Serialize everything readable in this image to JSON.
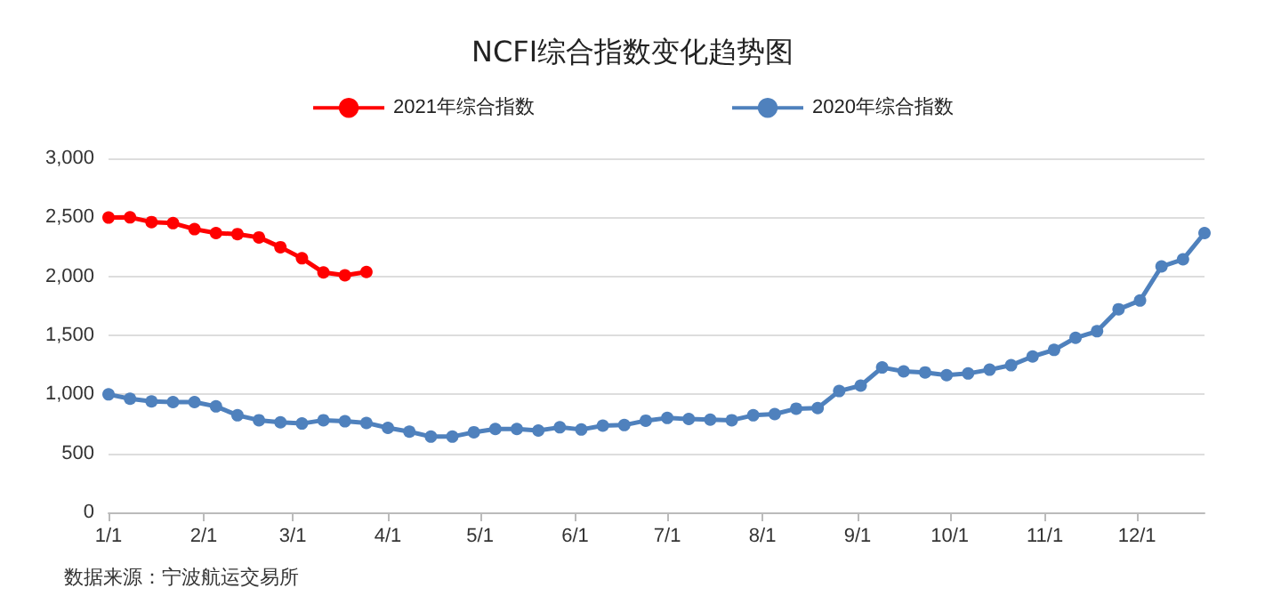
{
  "chart_data": {
    "type": "line",
    "title": "NCFI综合指数变化趋势图",
    "annotations": [
      "数据来源：宁波航运交易所"
    ],
    "series": [
      {
        "name": "2021年综合指数",
        "color": "#ff0000",
        "x": [
          "--01-01",
          "--01-08",
          "--01-15",
          "--01-22",
          "--01-29",
          "--02-05",
          "--02-12",
          "--02-19",
          "--02-26",
          "--03-04",
          "--03-11",
          "--03-18",
          "--03-25"
        ],
        "values": [
          2498,
          2500,
          2460,
          2451,
          2400,
          2367,
          2358,
          2330,
          2247,
          2153,
          2033,
          2009,
          2037
        ]
      },
      {
        "name": "2020年综合指数",
        "color": "#4f81bd",
        "x": [
          "--01-01",
          "--01-08",
          "--01-15",
          "--01-22",
          "--01-29",
          "--02-05",
          "--02-12",
          "--02-19",
          "--02-26",
          "--03-04",
          "--03-11",
          "--03-18",
          "--03-25",
          "--04-01",
          "--04-08",
          "--04-15",
          "--04-22",
          "--04-29",
          "--05-06",
          "--05-13",
          "--05-20",
          "--05-27",
          "--06-03",
          "--06-10",
          "--06-17",
          "--06-24",
          "--07-01",
          "--07-08",
          "--07-15",
          "--07-22",
          "--07-29",
          "--08-05",
          "--08-12",
          "--08-19",
          "--08-26",
          "--09-02",
          "--09-09",
          "--09-16",
          "--09-23",
          "--09-30",
          "--10-07",
          "--10-14",
          "--10-21",
          "--10-28",
          "--11-04",
          "--11-11",
          "--11-18",
          "--11-25",
          "--12-02",
          "--12-09",
          "--12-16",
          "--12-23"
        ],
        "values": [
          1000,
          963,
          940,
          935,
          935,
          898,
          823,
          781,
          763,
          753,
          781,
          772,
          758,
          716,
          684,
          642,
          642,
          679,
          707,
          707,
          693,
          721,
          702,
          735,
          740,
          777,
          800,
          791,
          786,
          781,
          823,
          833,
          879,
          884,
          1028,
          1074,
          1228,
          1195,
          1186,
          1163,
          1177,
          1209,
          1247,
          1321,
          1377,
          1479,
          1535,
          1721,
          1795,
          2084,
          2144,
          2367
        ]
      }
    ],
    "xlim": [
      "--01-01",
      "--12-23"
    ],
    "xticks": [
      {
        "value": "--01-01",
        "label": "1/1"
      },
      {
        "value": "--02-01",
        "label": "2/1"
      },
      {
        "value": "--03-01",
        "label": "3/1"
      },
      {
        "value": "--04-01",
        "label": "4/1"
      },
      {
        "value": "--05-01",
        "label": "5/1"
      },
      {
        "value": "--06-01",
        "label": "6/1"
      },
      {
        "value": "--07-01",
        "label": "7/1"
      },
      {
        "value": "--08-01",
        "label": "8/1"
      },
      {
        "value": "--09-01",
        "label": "9/1"
      },
      {
        "value": "--10-01",
        "label": "10/1"
      },
      {
        "value": "--11-01",
        "label": "11/1"
      },
      {
        "value": "--12-01",
        "label": "12/1"
      }
    ],
    "ylim": [
      0,
      3000
    ],
    "yticks": [
      0,
      500,
      {
        "value": 1000,
        "label": "1,000"
      },
      {
        "value": 1500,
        "label": "1,500"
      },
      {
        "value": 2000,
        "label": "2,000"
      },
      {
        "value": 2500,
        "label": "2,500"
      },
      {
        "value": 3000,
        "label": "3,000"
      }
    ],
    "grid": "y",
    "legend": "top",
    "marker": "circle",
    "line_style": "solid"
  }
}
